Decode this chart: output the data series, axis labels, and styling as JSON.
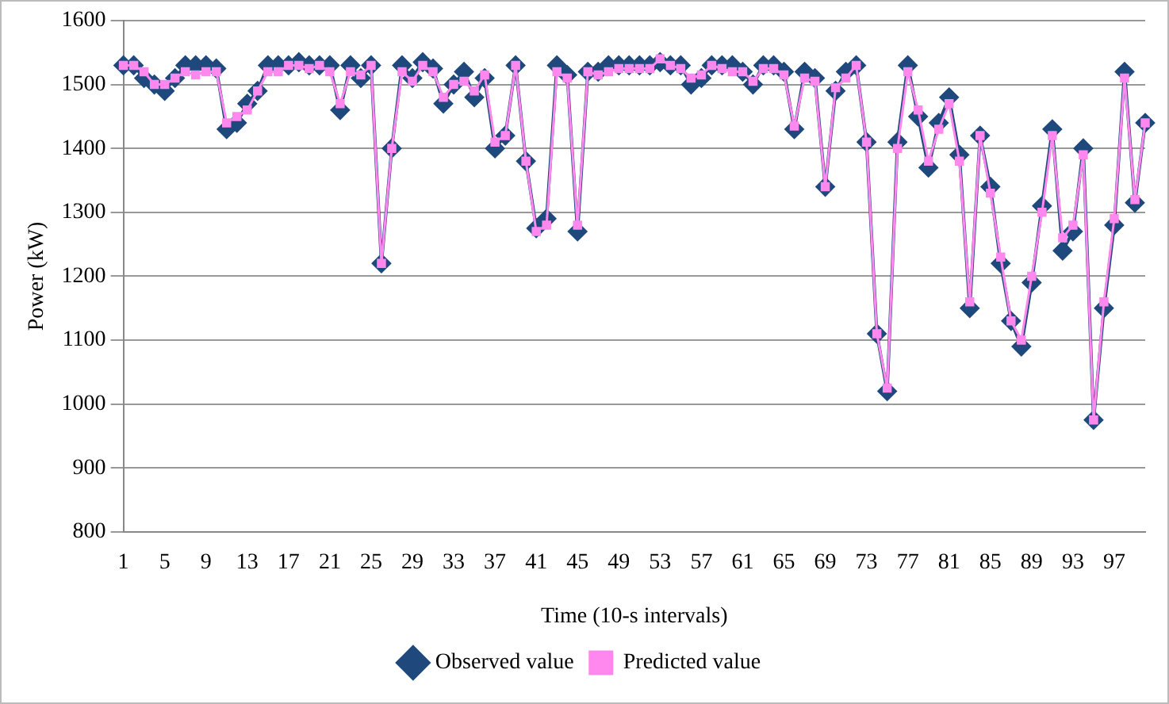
{
  "chart_data": {
    "type": "line",
    "xlabel": "Time (10-s intervals)",
    "ylabel": "Power (kW)",
    "categories": [
      "1",
      null,
      null,
      null,
      "5",
      null,
      null,
      null,
      "9",
      null,
      null,
      null,
      "13",
      null,
      null,
      null,
      "17",
      null,
      null,
      null,
      "21",
      null,
      null,
      null,
      "25",
      null,
      null,
      null,
      "29",
      null,
      null,
      null,
      "33",
      null,
      null,
      null,
      "37",
      null,
      null,
      null,
      "41",
      null,
      null,
      null,
      "45",
      null,
      null,
      null,
      "49",
      null,
      null,
      null,
      "53",
      null,
      null,
      null,
      "57",
      null,
      null,
      null,
      "61",
      null,
      null,
      null,
      "65",
      null,
      null,
      null,
      "69",
      null,
      null,
      null,
      "73",
      null,
      null,
      null,
      "77",
      null,
      null,
      null,
      "81",
      null,
      null,
      null,
      "85",
      null,
      null,
      null,
      "89",
      null,
      null,
      null,
      "93",
      null,
      null,
      null,
      "97",
      null,
      null,
      null
    ],
    "series": [
      {
        "name": "Observed value",
        "color": "#1f497d",
        "marker": "diamond",
        "values": [
          1530,
          1530,
          1510,
          1500,
          1490,
          1510,
          1530,
          1530,
          1530,
          1525,
          1430,
          1440,
          1470,
          1490,
          1530,
          1530,
          1530,
          1535,
          1530,
          1530,
          1530,
          1460,
          1530,
          1510,
          1530,
          1220,
          1400,
          1530,
          1510,
          1535,
          1525,
          1470,
          1500,
          1520,
          1480,
          1510,
          1400,
          1420,
          1530,
          1380,
          1275,
          1290,
          1530,
          1515,
          1270,
          1520,
          1520,
          1530,
          1530,
          1530,
          1530,
          1530,
          1535,
          1530,
          1530,
          1500,
          1510,
          1530,
          1530,
          1530,
          1520,
          1500,
          1530,
          1530,
          1520,
          1430,
          1520,
          1510,
          1340,
          1490,
          1520,
          1530,
          1410,
          1110,
          1020,
          1410,
          1530,
          1450,
          1370,
          1440,
          1480,
          1390,
          1150,
          1420,
          1340,
          1220,
          1130,
          1090,
          1190,
          1310,
          1430,
          1240,
          1270,
          1400,
          975,
          1150,
          1280,
          1520,
          1315,
          1440
        ]
      },
      {
        "name": "Predicted value",
        "color": "#ff88ee",
        "marker": "square",
        "values": [
          1530,
          1530,
          1520,
          1500,
          1500,
          1510,
          1520,
          1515,
          1520,
          1520,
          1440,
          1450,
          1460,
          1490,
          1520,
          1520,
          1530,
          1530,
          1525,
          1530,
          1520,
          1470,
          1520,
          1515,
          1530,
          1220,
          1400,
          1520,
          1505,
          1530,
          1520,
          1480,
          1500,
          1505,
          1490,
          1515,
          1410,
          1420,
          1530,
          1380,
          1270,
          1280,
          1520,
          1510,
          1280,
          1520,
          1515,
          1520,
          1525,
          1525,
          1525,
          1525,
          1540,
          1530,
          1525,
          1510,
          1515,
          1530,
          1525,
          1520,
          1520,
          1505,
          1525,
          1525,
          1515,
          1435,
          1510,
          1505,
          1340,
          1495,
          1510,
          1530,
          1410,
          1110,
          1025,
          1400,
          1520,
          1460,
          1380,
          1430,
          1470,
          1380,
          1160,
          1420,
          1330,
          1230,
          1130,
          1100,
          1200,
          1300,
          1420,
          1260,
          1280,
          1390,
          975,
          1160,
          1290,
          1510,
          1320,
          1440
        ]
      }
    ],
    "ylim": [
      800,
      1600
    ],
    "yticks": [
      800,
      900,
      1000,
      1100,
      1200,
      1300,
      1400,
      1500,
      1600
    ],
    "grid": "y",
    "legend": "bottom",
    "line_style": "solid"
  }
}
